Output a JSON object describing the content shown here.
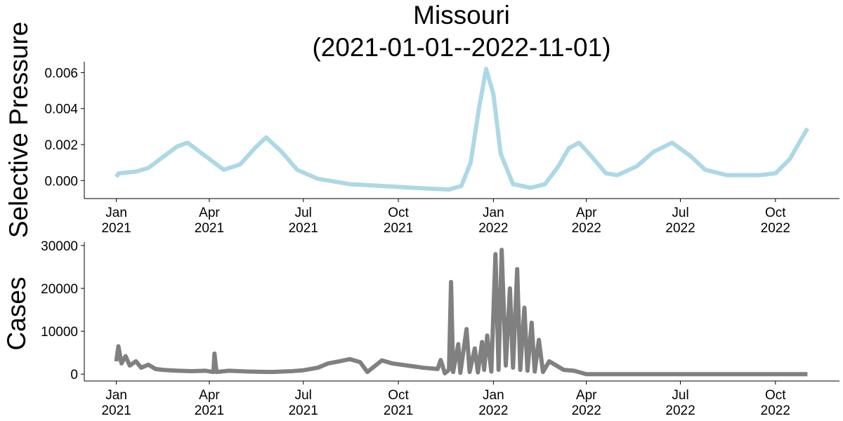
{
  "chart_data": [
    {
      "type": "line",
      "title": "Missouri",
      "subtitle": "(2021-01-01--2022-11-01)",
      "y_label": "Selective Pressure",
      "x": [
        "2021-01-01",
        "2021-01-03",
        "2021-01-20",
        "2021-02-01",
        "2021-02-15",
        "2021-03-01",
        "2021-03-11",
        "2021-03-25",
        "2021-04-15",
        "2021-05-01",
        "2021-05-15",
        "2021-05-26",
        "2021-06-10",
        "2021-06-25",
        "2021-07-15",
        "2021-08-15",
        "2021-09-15",
        "2021-10-15",
        "2021-11-19",
        "2021-12-01",
        "2021-12-10",
        "2021-12-18",
        "2021-12-25",
        "2022-01-01",
        "2022-01-08",
        "2022-01-20",
        "2022-02-06",
        "2022-02-20",
        "2022-03-05",
        "2022-03-15",
        "2022-03-25",
        "2022-04-05",
        "2022-04-20",
        "2022-05-01",
        "2022-05-20",
        "2022-06-05",
        "2022-06-23",
        "2022-07-10",
        "2022-07-25",
        "2022-08-15",
        "2022-09-15",
        "2022-10-01",
        "2022-10-15",
        "2022-11-01"
      ],
      "series": [
        {
          "name": "Selective Pressure",
          "color": "#add8e6",
          "values": [
            0.0002,
            0.0004,
            0.0005,
            0.0007,
            0.0013,
            0.0019,
            0.0021,
            0.0015,
            0.0006,
            0.0009,
            0.0018,
            0.0024,
            0.0016,
            0.0006,
            0.0001,
            -0.0002,
            -0.0003,
            -0.0004,
            -0.0005,
            -0.0003,
            0.001,
            0.004,
            0.0062,
            0.0048,
            0.0015,
            -0.0002,
            -0.0004,
            -0.0002,
            0.0008,
            0.0018,
            0.0021,
            0.0014,
            0.0004,
            0.0003,
            0.0008,
            0.0016,
            0.0021,
            0.0014,
            0.0006,
            0.0003,
            0.0003,
            0.0004,
            0.0012,
            0.0029
          ]
        }
      ],
      "xlim": [
        "2020-12-01",
        "2022-12-02"
      ],
      "xticks": [
        {
          "value": "2021-01-01",
          "label": "Jan\n2021"
        },
        {
          "value": "2021-04-01",
          "label": "Apr\n2021"
        },
        {
          "value": "2021-07-01",
          "label": "Jul\n2021"
        },
        {
          "value": "2021-10-01",
          "label": "Oct\n2021"
        },
        {
          "value": "2022-01-01",
          "label": "Jan\n2022"
        },
        {
          "value": "2022-04-01",
          "label": "Apr\n2022"
        },
        {
          "value": "2022-07-01",
          "label": "Jul\n2022"
        },
        {
          "value": "2022-10-01",
          "label": "Oct\n2022"
        }
      ],
      "ylim": [
        -0.001,
        0.0066
      ],
      "yticks": [
        {
          "value": 0,
          "label": "0.000"
        },
        0.002,
        0.004,
        0.006
      ]
    },
    {
      "type": "line",
      "y_label": "Cases",
      "x": [
        "2021-01-01",
        "2021-01-03",
        "2021-01-06",
        "2021-01-10",
        "2021-01-14",
        "2021-01-20",
        "2021-01-25",
        "2021-02-01",
        "2021-02-08",
        "2021-02-15",
        "2021-03-01",
        "2021-03-15",
        "2021-03-28",
        "2021-04-05",
        "2021-04-06",
        "2021-04-08",
        "2021-04-20",
        "2021-05-10",
        "2021-06-01",
        "2021-06-20",
        "2021-07-01",
        "2021-07-15",
        "2021-07-25",
        "2021-08-05",
        "2021-08-15",
        "2021-08-25",
        "2021-09-01",
        "2021-09-15",
        "2021-09-25",
        "2021-10-10",
        "2021-10-25",
        "2021-11-08",
        "2021-11-11",
        "2021-11-15",
        "2021-11-19",
        "2021-11-21",
        "2021-11-23",
        "2021-11-28",
        "2021-11-30",
        "2021-12-06",
        "2021-12-09",
        "2021-12-14",
        "2021-12-17",
        "2021-12-21",
        "2021-12-23",
        "2021-12-26",
        "2021-12-30",
        "2022-01-03",
        "2022-01-06",
        "2022-01-09",
        "2022-01-13",
        "2022-01-17",
        "2022-01-20",
        "2022-01-24",
        "2022-01-27",
        "2022-01-31",
        "2022-02-03",
        "2022-02-07",
        "2022-02-10",
        "2022-02-14",
        "2022-02-18",
        "2022-02-24",
        "2022-03-03",
        "2022-03-10",
        "2022-03-20",
        "2022-04-01",
        "2022-07-01",
        "2022-11-01"
      ],
      "series": [
        {
          "name": "Cases",
          "color": "#808080",
          "values": [
            3000,
            6500,
            2500,
            4200,
            2000,
            3000,
            1500,
            2200,
            1200,
            1000,
            800,
            700,
            800,
            500,
            4800,
            500,
            800,
            600,
            500,
            700,
            900,
            1500,
            2500,
            3000,
            3500,
            2800,
            500,
            3200,
            2500,
            2000,
            1500,
            1200,
            3300,
            200,
            1000,
            21500,
            500,
            7000,
            300,
            10500,
            500,
            6000,
            400,
            7500,
            1000,
            9000,
            600,
            28000,
            1000,
            29000,
            2000,
            20000,
            1500,
            24500,
            1000,
            15500,
            800,
            12000,
            600,
            8000,
            500,
            3000,
            2000,
            1000,
            800,
            0,
            0,
            0
          ]
        }
      ],
      "xlim": [
        "2020-12-01",
        "2022-12-02"
      ],
      "xticks": [
        {
          "value": "2021-01-01",
          "label": "Jan\n2021"
        },
        {
          "value": "2021-04-01",
          "label": "Apr\n2021"
        },
        {
          "value": "2021-07-01",
          "label": "Jul\n2021"
        },
        {
          "value": "2021-10-01",
          "label": "Oct\n2021"
        },
        {
          "value": "2022-01-01",
          "label": "Jan\n2022"
        },
        {
          "value": "2022-04-01",
          "label": "Apr\n2022"
        },
        {
          "value": "2022-07-01",
          "label": "Jul\n2022"
        },
        {
          "value": "2022-10-01",
          "label": "Oct\n2022"
        }
      ],
      "ylim": [
        -1600,
        30800
      ],
      "yticks": [
        0,
        10000,
        20000,
        30000
      ]
    }
  ]
}
